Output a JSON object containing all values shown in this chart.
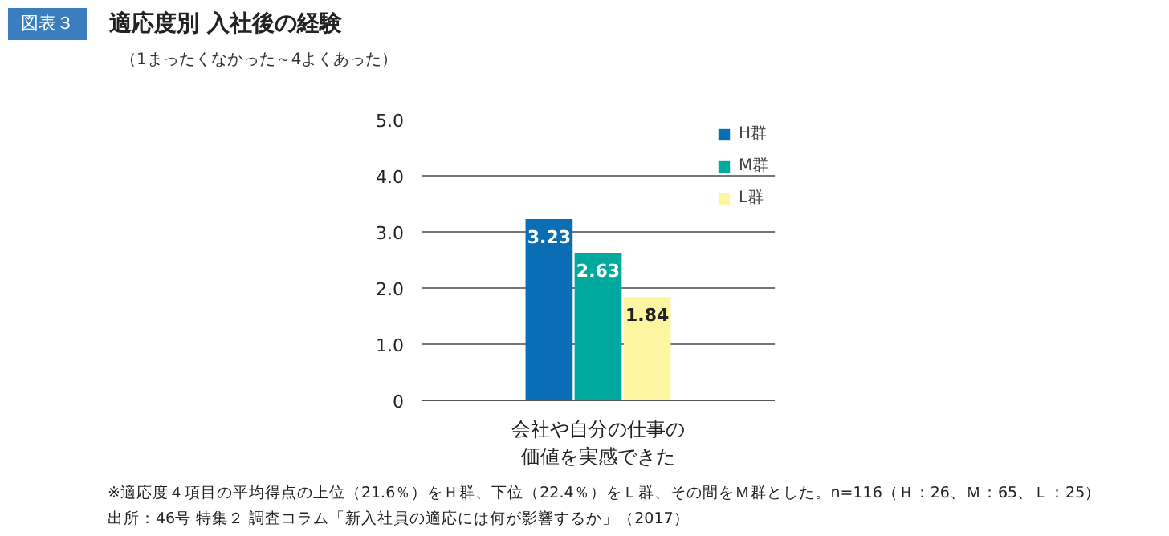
{
  "chart_data": {
    "type": "bar",
    "title": "適応度別 入社後の経験",
    "subtitle": "（1まったくなかった～4よくあった）",
    "categories": [
      "会社や自分の仕事の価値を実感できた"
    ],
    "series": [
      {
        "name": "H群",
        "color": "#0a6eb4",
        "values": [
          3.23
        ]
      },
      {
        "name": "M群",
        "color": "#00a99d",
        "values": [
          2.63
        ]
      },
      {
        "name": "L群",
        "color": "#fdf5a0",
        "values": [
          1.84
        ]
      }
    ],
    "ylim": [
      0,
      5
    ],
    "yticks": [
      0,
      {
        "value": 1,
        "label": "1.0"
      },
      {
        "value": 2,
        "label": "2.0"
      },
      {
        "value": 3,
        "label": "3.0"
      },
      {
        "value": 4,
        "label": "4.0"
      },
      {
        "value": 5,
        "label": "5.0"
      }
    ],
    "grid": "y",
    "legend": "top right",
    "data_labels": true,
    "annotations": [
      "図表３",
      "※適応度４項目の平均得点の上位（21.6％）をＨ群、下位（22.4％）をＬ群、その間をＭ群とした。n=116（Ｈ：26、Ｍ：65、Ｌ：25）",
      "出所：46号 特集２ 調査コラム「新入社員の適応には何が影響するか」（2017）"
    ]
  }
}
